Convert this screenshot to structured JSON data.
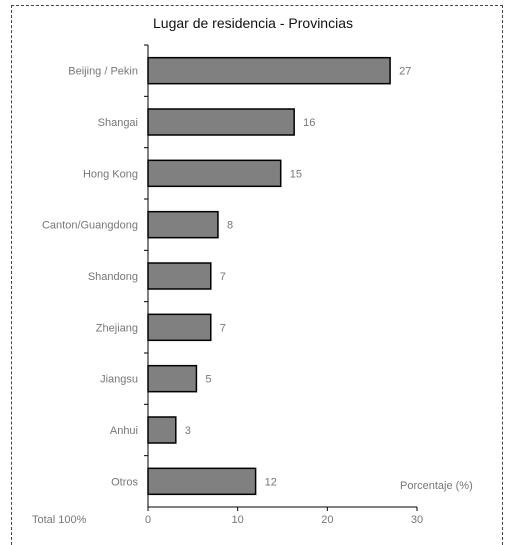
{
  "chart_data": {
    "type": "bar",
    "orientation": "horizontal",
    "title": "Lugar de residencia - Provincias",
    "categories": [
      "Beijing / Pekin",
      "Shangai",
      "Hong Kong",
      "Canton/Guangdong",
      "Shandong",
      "Zhejiang",
      "Jiangsu",
      "Anhui",
      "Otros"
    ],
    "values": [
      27,
      16,
      15,
      8,
      7,
      7,
      5,
      3,
      12
    ],
    "bar_lengths": [
      27,
      16.3,
      14.8,
      7.8,
      7,
      7,
      5.4,
      3.1,
      12
    ],
    "xlabel": "Porcentaje (%)",
    "xlim": [
      0,
      30
    ],
    "xticks": [
      "0",
      "10",
      "20",
      "30"
    ],
    "footnote": "Total 100%",
    "grid": false,
    "bar_color": "#808080",
    "bar_edge_color": "#000000"
  }
}
